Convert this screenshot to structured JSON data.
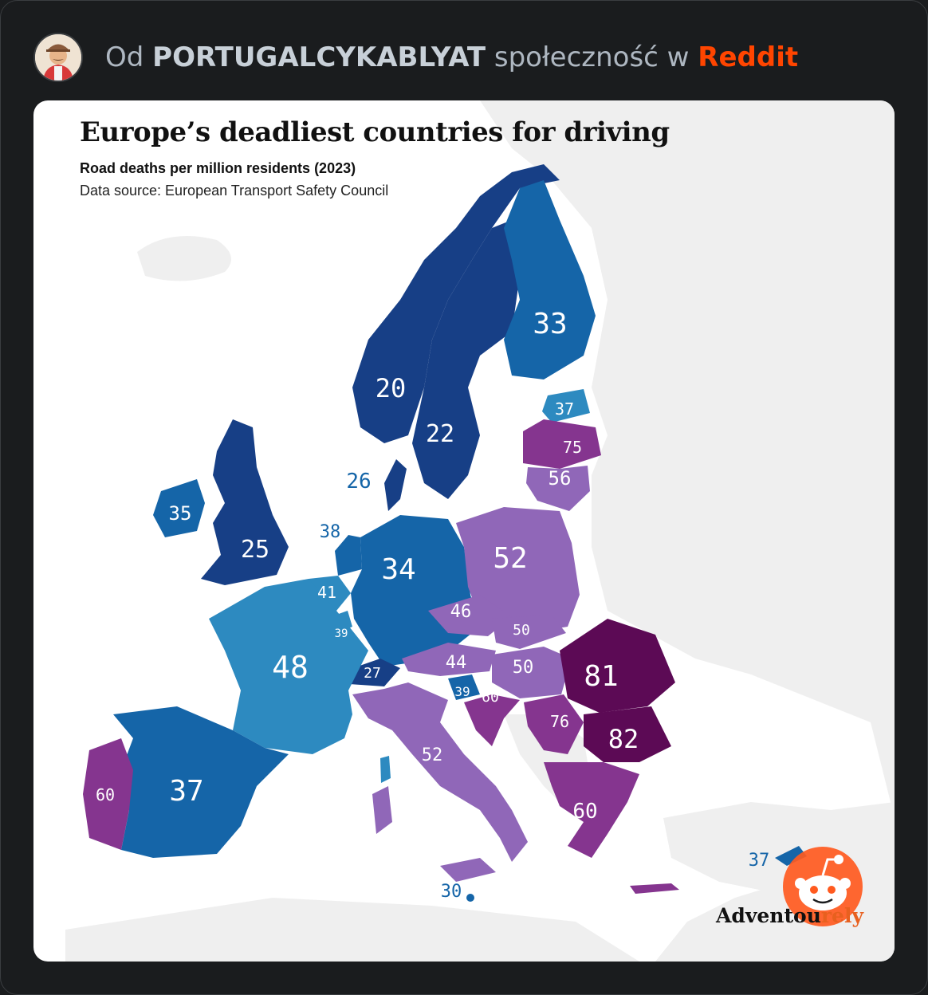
{
  "post": {
    "prefix": "Od",
    "community": "PORTUGALCYKABLYAT",
    "middle": "społeczność w",
    "platform": "Reddit"
  },
  "map": {
    "title": "Europe’s deadliest countries for driving",
    "subtitle": "Road deaths per million residents (2023)",
    "source": "Data source: European Transport Safety Council",
    "credit_main": "Adventou",
    "credit_accent": "rely"
  },
  "legend_colors": {
    "very_low": "#173f86",
    "low": "#1565a8",
    "mid_low": "#2d8ac0",
    "mid": "#9067b8",
    "high": "#85358f",
    "very_high": "#5c0a55",
    "land_other": "#efefef",
    "sea": "#ffffff"
  },
  "countries": [
    {
      "id": "norway",
      "name": "Norway",
      "value": 20
    },
    {
      "id": "sweden",
      "name": "Sweden",
      "value": 22
    },
    {
      "id": "denmark",
      "name": "Denmark",
      "value": 26
    },
    {
      "id": "finland",
      "name": "Finland",
      "value": 33
    },
    {
      "id": "estonia",
      "name": "Estonia",
      "value": 37
    },
    {
      "id": "latvia",
      "name": "Latvia",
      "value": 75
    },
    {
      "id": "lithuania",
      "name": "Lithuania",
      "value": 56
    },
    {
      "id": "ireland",
      "name": "Ireland",
      "value": 35
    },
    {
      "id": "uk",
      "name": "United Kingdom",
      "value": 25
    },
    {
      "id": "netherlands",
      "name": "Netherlands",
      "value": 38
    },
    {
      "id": "belgium",
      "name": "Belgium",
      "value": 41
    },
    {
      "id": "luxembourg",
      "name": "Luxembourg",
      "value": 39
    },
    {
      "id": "germany",
      "name": "Germany",
      "value": 34
    },
    {
      "id": "poland",
      "name": "Poland",
      "value": 52
    },
    {
      "id": "czechia",
      "name": "Czechia",
      "value": 46
    },
    {
      "id": "slovakia",
      "name": "Slovakia",
      "value": 50
    },
    {
      "id": "austria",
      "name": "Austria",
      "value": 44
    },
    {
      "id": "hungary",
      "name": "Hungary",
      "value": 50
    },
    {
      "id": "switzerland",
      "name": "Switzerland",
      "value": 27
    },
    {
      "id": "slovenia",
      "name": "Slovenia",
      "value": 39
    },
    {
      "id": "croatia",
      "name": "Croatia",
      "value": 60
    },
    {
      "id": "romania",
      "name": "Romania",
      "value": 81
    },
    {
      "id": "serbia",
      "name": "Serbia",
      "value": 76
    },
    {
      "id": "bulgaria",
      "name": "Bulgaria",
      "value": 82
    },
    {
      "id": "greece",
      "name": "Greece",
      "value": 60
    },
    {
      "id": "italy",
      "name": "Italy",
      "value": 52
    },
    {
      "id": "france",
      "name": "France",
      "value": 48
    },
    {
      "id": "spain",
      "name": "Spain",
      "value": 37
    },
    {
      "id": "portugal",
      "name": "Portugal",
      "value": 60
    },
    {
      "id": "malta",
      "name": "Malta",
      "value": 30
    },
    {
      "id": "cyprus",
      "name": "Cyprus",
      "value": 37
    }
  ]
}
